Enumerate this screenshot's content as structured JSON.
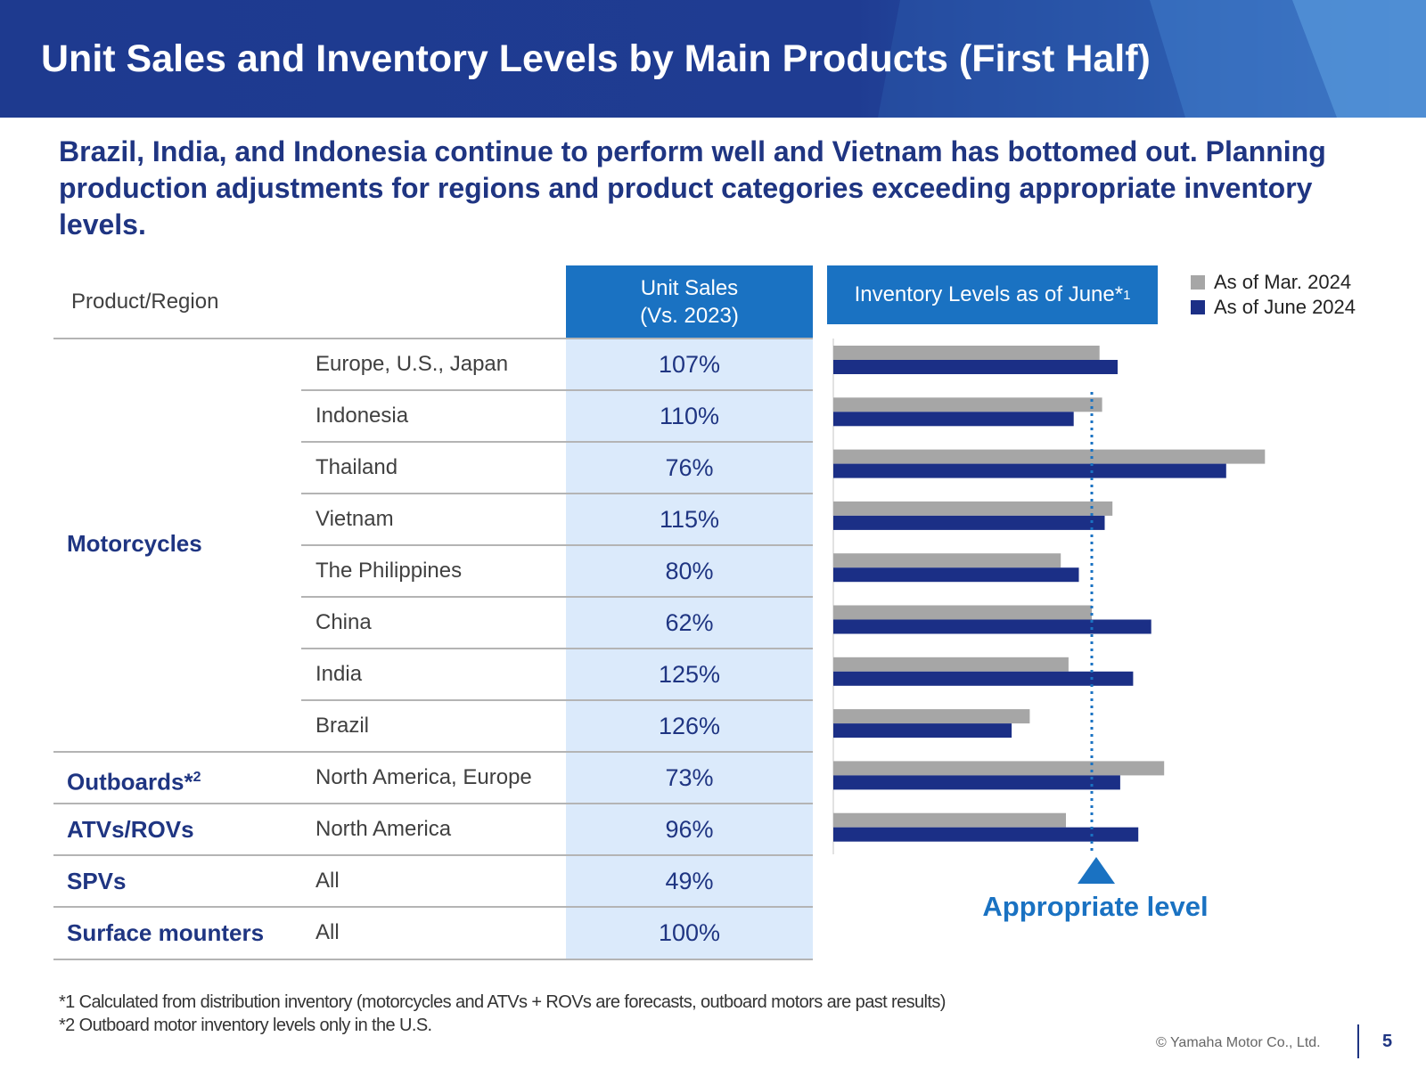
{
  "header": {
    "title": "Unit Sales and Inventory Levels by Main Products (First Half)"
  },
  "subtitle": "Brazil, India, and Indonesia continue to perform well and Vietnam has bottomed out. Planning production adjustments for regions and product categories exceeding appropriate inventory levels.",
  "table": {
    "col_product_region": "Product/Region",
    "unit_sales_line1": "Unit Sales",
    "unit_sales_line2": "(Vs. 2023)",
    "motorcycles_label": "Motorcycles",
    "rows": [
      {
        "category": "",
        "category_note": "",
        "region": "Europe, U.S., Japan",
        "unit_sales": "107%"
      },
      {
        "category": "",
        "category_note": "",
        "region": "Indonesia",
        "unit_sales": "110%"
      },
      {
        "category": "",
        "category_note": "",
        "region": "Thailand",
        "unit_sales": "76%"
      },
      {
        "category": "",
        "category_note": "",
        "region": "Vietnam",
        "unit_sales": "115%"
      },
      {
        "category": "",
        "category_note": "",
        "region": "The Philippines",
        "unit_sales": "80%"
      },
      {
        "category": "",
        "category_note": "",
        "region": "China",
        "unit_sales": "62%"
      },
      {
        "category": "",
        "category_note": "",
        "region": "India",
        "unit_sales": "125%"
      },
      {
        "category": "",
        "category_note": "",
        "region": "Brazil",
        "unit_sales": "126%"
      },
      {
        "category": "Outboards*",
        "category_note": "2",
        "region": "North America, Europe",
        "unit_sales": "73%"
      },
      {
        "category": "ATVs/ROVs",
        "category_note": "",
        "region": "North America",
        "unit_sales": "96%"
      },
      {
        "category": "SPVs",
        "category_note": "",
        "region": "All",
        "unit_sales": "49%"
      },
      {
        "category": "Surface mounters",
        "category_note": "",
        "region": "All",
        "unit_sales": "100%"
      }
    ]
  },
  "inventory": {
    "header": "Inventory Levels as of June*",
    "header_note": "1",
    "legend": [
      {
        "label": "As of Mar. 2024",
        "color": "#a6a6a6"
      },
      {
        "label": "As of June 2024",
        "color": "#1b2f86"
      }
    ],
    "appropriate_level_label": "Appropriate level"
  },
  "chart_data": {
    "type": "bar",
    "orientation": "horizontal",
    "title": "Inventory Levels as of June*1",
    "xlabel": "",
    "ylabel": "",
    "axis_values_shown": false,
    "unit": "relative to appropriate inventory level (appropriate level = 1.00)",
    "categories": [
      "Europe, U.S., Japan",
      "Indonesia",
      "Thailand",
      "Vietnam",
      "The Philippines",
      "China",
      "India",
      "Brazil",
      "North America, Europe",
      "North America",
      "All",
      "All"
    ],
    "reference_line": {
      "label": "Appropriate level",
      "value": 1.0
    },
    "xlim": [
      0,
      1.7
    ],
    "series": [
      {
        "name": "As of Mar. 2024",
        "color": "#a6a6a6",
        "values": [
          1.03,
          1.04,
          1.67,
          1.08,
          0.88,
          1.0,
          0.91,
          0.76,
          1.28,
          0.9,
          null,
          null
        ]
      },
      {
        "name": "As of June 2024",
        "color": "#1b2f86",
        "values": [
          1.1,
          0.93,
          1.52,
          1.05,
          0.95,
          1.23,
          1.16,
          0.69,
          1.11,
          1.18,
          null,
          null
        ]
      }
    ]
  },
  "footnotes": {
    "note1": "*1 Calculated from distribution inventory (motorcycles and ATVs + ROVs are forecasts, outboard motors are past results)",
    "note2": "*2 Outboard motor inventory levels only in the U.S."
  },
  "footer": {
    "copyright": "© Yamaha Motor Co., Ltd.",
    "page_number": "5"
  }
}
